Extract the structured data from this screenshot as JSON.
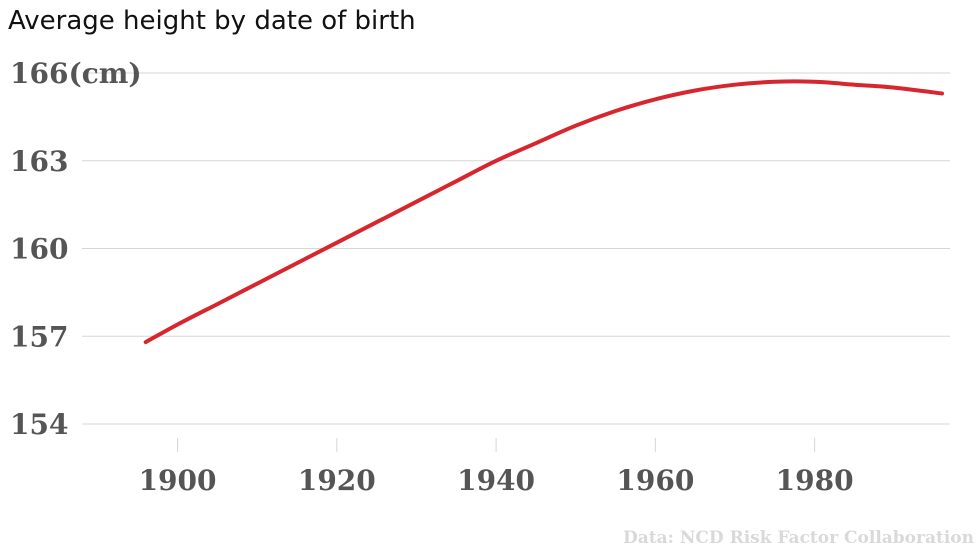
{
  "chart_data": {
    "type": "line",
    "title": "Average height by date of birth",
    "y_unit": "(cm)",
    "ylim": [
      154,
      166
    ],
    "yticks": [
      166,
      163,
      160,
      157,
      154
    ],
    "xlim": [
      1888,
      1997
    ],
    "xticks": [
      1900,
      1920,
      1940,
      1960,
      1980
    ],
    "grid": true,
    "series": [
      {
        "color": "#d7262e",
        "x": [
          1896,
          1900,
          1905,
          1910,
          1915,
          1920,
          1925,
          1930,
          1935,
          1940,
          1945,
          1950,
          1955,
          1960,
          1965,
          1970,
          1975,
          1980,
          1985,
          1990,
          1996
        ],
        "y": [
          156.8,
          157.4,
          158.1,
          158.8,
          159.5,
          160.2,
          160.9,
          161.6,
          162.3,
          163.0,
          163.6,
          164.2,
          164.7,
          165.1,
          165.4,
          165.6,
          165.7,
          165.7,
          165.6,
          165.5,
          165.3
        ]
      }
    ],
    "source": "Data: NCD Risk Factor Collaboration"
  }
}
